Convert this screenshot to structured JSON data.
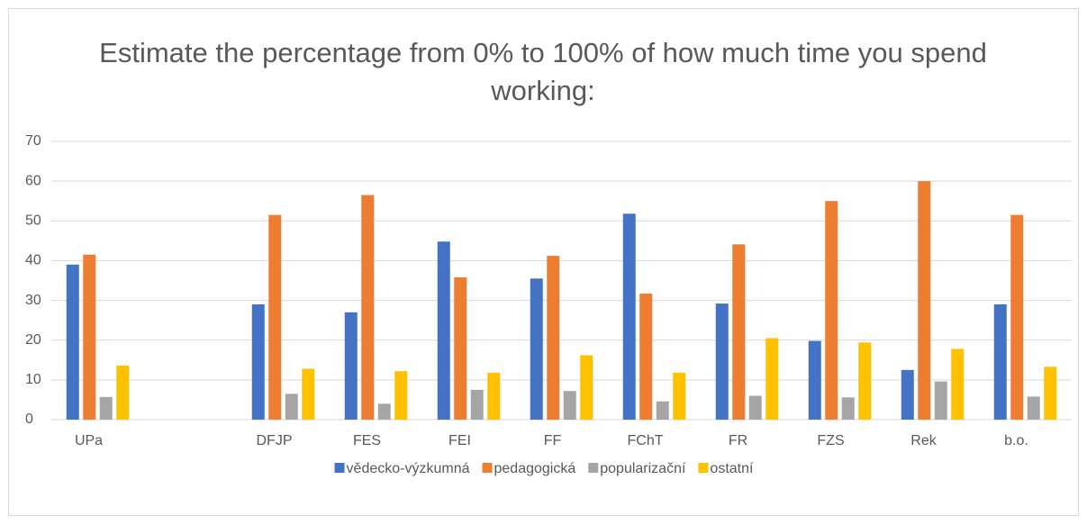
{
  "chart_data": {
    "type": "bar",
    "title": "Estimate the percentage from 0% to 100% of how much time you spend working:",
    "categories": [
      "UPa",
      null,
      "DFJP",
      "FES",
      "FEI",
      "FF",
      "FChT",
      "FR",
      "FZS",
      "Rek",
      "b.o."
    ],
    "series": [
      {
        "name": "vědecko-výzkumná",
        "color": "#4472c4",
        "values": [
          39,
          null,
          29,
          27,
          44.8,
          35.5,
          51.8,
          29.2,
          19.8,
          12.5,
          29
        ]
      },
      {
        "name": "pedagogická",
        "color": "#ed7d31",
        "values": [
          41.5,
          null,
          51.5,
          56.5,
          35.8,
          41.2,
          31.7,
          44.1,
          55,
          60,
          51.5
        ]
      },
      {
        "name": "popularizační",
        "color": "#a5a5a5",
        "values": [
          5.7,
          null,
          6.5,
          4,
          7.5,
          7.2,
          4.6,
          6,
          5.6,
          9.6,
          5.8
        ]
      },
      {
        "name": "ostatní",
        "color": "#ffc000",
        "values": [
          13.6,
          null,
          12.8,
          12.2,
          11.8,
          16.2,
          11.8,
          20.5,
          19.4,
          17.8,
          13.3
        ]
      }
    ],
    "ylim": [
      0,
      70
    ],
    "yticks": [
      0,
      10,
      20,
      30,
      40,
      50,
      60,
      70
    ],
    "grid": true,
    "legend": "bottom"
  }
}
